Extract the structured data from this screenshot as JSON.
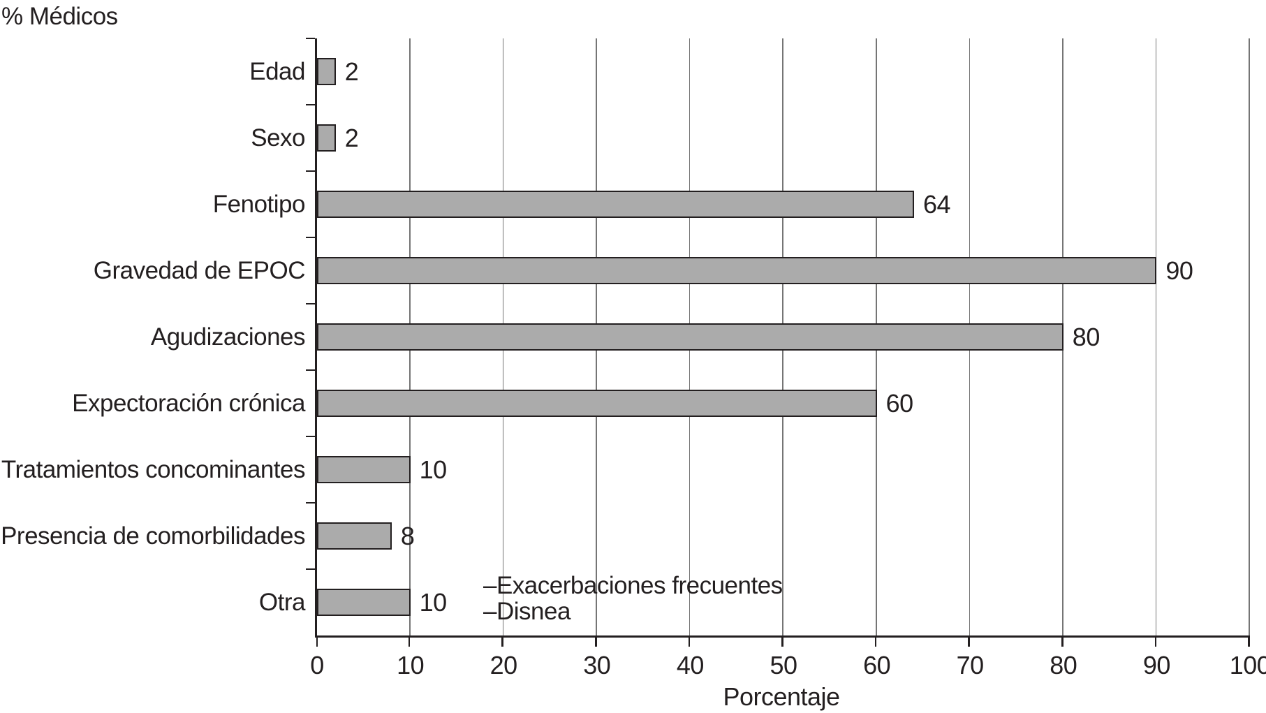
{
  "chart_data": {
    "type": "bar",
    "orientation": "horizontal",
    "title": "",
    "ylabel": "% Médicos",
    "xlabel": "Porcentaje",
    "categories": [
      "Edad",
      "Sexo",
      "Fenotipo",
      "Gravedad de EPOC",
      "Agudizaciones",
      "Expectoración crónica",
      "Tratamientos concominantes",
      "Presencia de comorbilidades",
      "Otra"
    ],
    "values": [
      2,
      2,
      64,
      90,
      80,
      60,
      10,
      8,
      10
    ],
    "xlim": [
      0,
      100
    ],
    "xticks": [
      0,
      10,
      20,
      30,
      40,
      50,
      60,
      70,
      80,
      90,
      100
    ],
    "grid": "vertical-gridlines",
    "legend": "none",
    "bar_color": "#ababab",
    "bar_border_color": "#231f20",
    "gridline_color": "#757575",
    "axis_color": "#231f20",
    "annotation": {
      "lines": [
        "–Exacerbaciones frecuentes",
        "–Disnea"
      ]
    }
  }
}
